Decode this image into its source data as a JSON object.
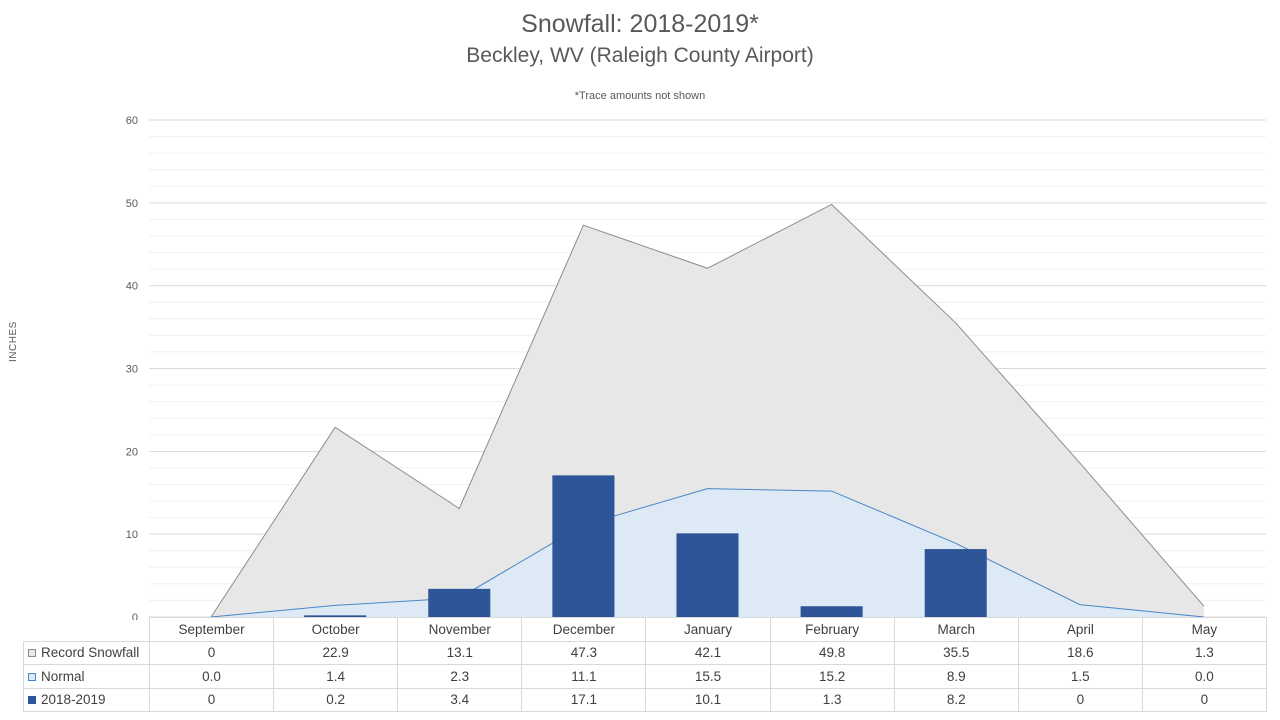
{
  "title": "Snowfall: 2018-2019*",
  "subtitle": "Beckley, WV (Raleigh County Airport)",
  "note": "*Trace amounts not shown",
  "colors": {
    "record_fill": "#e7e7e7",
    "record_line": "#8c8c8c",
    "normal_fill": "#dde9f5",
    "normal_line": "#4a86c8",
    "season_bar": "#2e5597",
    "gridline": "#d9d9d9"
  },
  "chart_data": {
    "type": "bar",
    "title": "Snowfall: 2018-2019*",
    "subtitle": "Beckley, WV (Raleigh County Airport)",
    "annotation": "*Trace amounts not shown",
    "ylabel": "INCHES",
    "xlabel": "",
    "ylim": [
      0,
      60
    ],
    "yticks": [
      0,
      10,
      20,
      30,
      40,
      50,
      60
    ],
    "grid": true,
    "legend": "data-table",
    "categories": [
      "September",
      "October",
      "November",
      "December",
      "January",
      "February",
      "March",
      "April",
      "May"
    ],
    "series": [
      {
        "name": "Record Snowfall",
        "type": "area",
        "values": [
          0,
          22.9,
          13.1,
          47.3,
          42.1,
          49.8,
          35.5,
          18.6,
          1.3
        ],
        "labels": [
          "0",
          "22.9",
          "13.1",
          "47.3",
          "42.1",
          "49.8",
          "35.5",
          "18.6",
          "1.3"
        ]
      },
      {
        "name": "Normal",
        "type": "area",
        "values": [
          0.0,
          1.4,
          2.3,
          11.1,
          15.5,
          15.2,
          8.9,
          1.5,
          0.0
        ],
        "labels": [
          "0.0",
          "1.4",
          "2.3",
          "11.1",
          "15.5",
          "15.2",
          "8.9",
          "1.5",
          "0.0"
        ]
      },
      {
        "name": "2018-2019",
        "type": "bar",
        "values": [
          0,
          0.2,
          3.4,
          17.1,
          10.1,
          1.3,
          8.2,
          0,
          0
        ],
        "labels": [
          "0",
          "0.2",
          "3.4",
          "17.1",
          "10.1",
          "1.3",
          "8.2",
          "0",
          "0"
        ]
      }
    ]
  }
}
